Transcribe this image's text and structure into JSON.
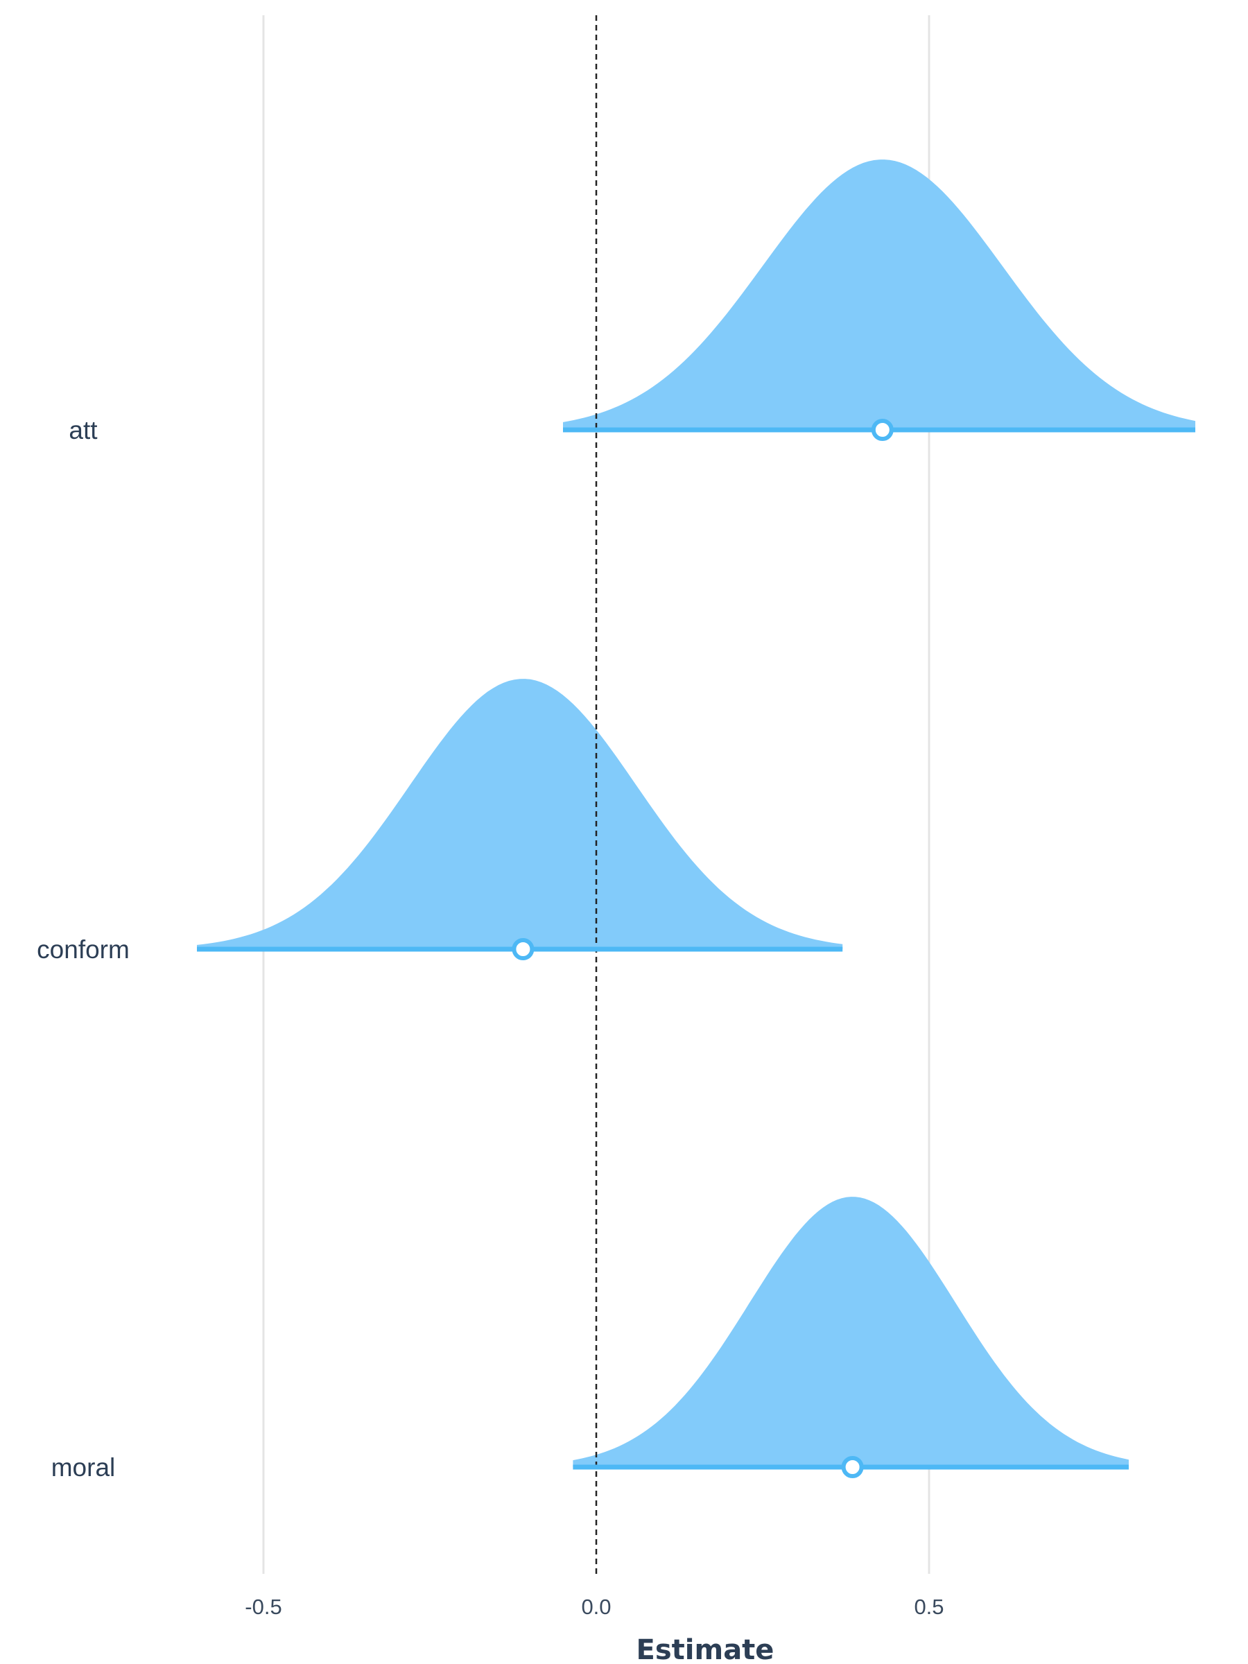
{
  "chart_data": {
    "type": "area",
    "title": "",
    "xlabel": "Estimate",
    "ylabel": "",
    "xlim": [
      -0.975,
      0.92
    ],
    "xticks": [
      -0.5,
      0.0,
      0.5
    ],
    "xtick_labels": [
      "-0.5",
      "0.0",
      "0.5"
    ],
    "reference_line": 0.0,
    "grid": true,
    "legend": "none",
    "colors": {
      "density": "#82cbfa",
      "interval": "#4db8f5",
      "point_fill": "#ffffff",
      "reference": "#222222",
      "grid": "#e4e4e4"
    },
    "series": [
      {
        "name": "att",
        "estimate": 0.43,
        "sd": 0.18,
        "interval": [
          -0.05,
          0.9
        ]
      },
      {
        "name": "conform",
        "estimate": -0.11,
        "sd": 0.17,
        "interval": [
          -0.6,
          0.37
        ]
      },
      {
        "name": "moral",
        "estimate": 0.385,
        "sd": 0.155,
        "interval": [
          -0.035,
          0.8
        ]
      }
    ]
  }
}
